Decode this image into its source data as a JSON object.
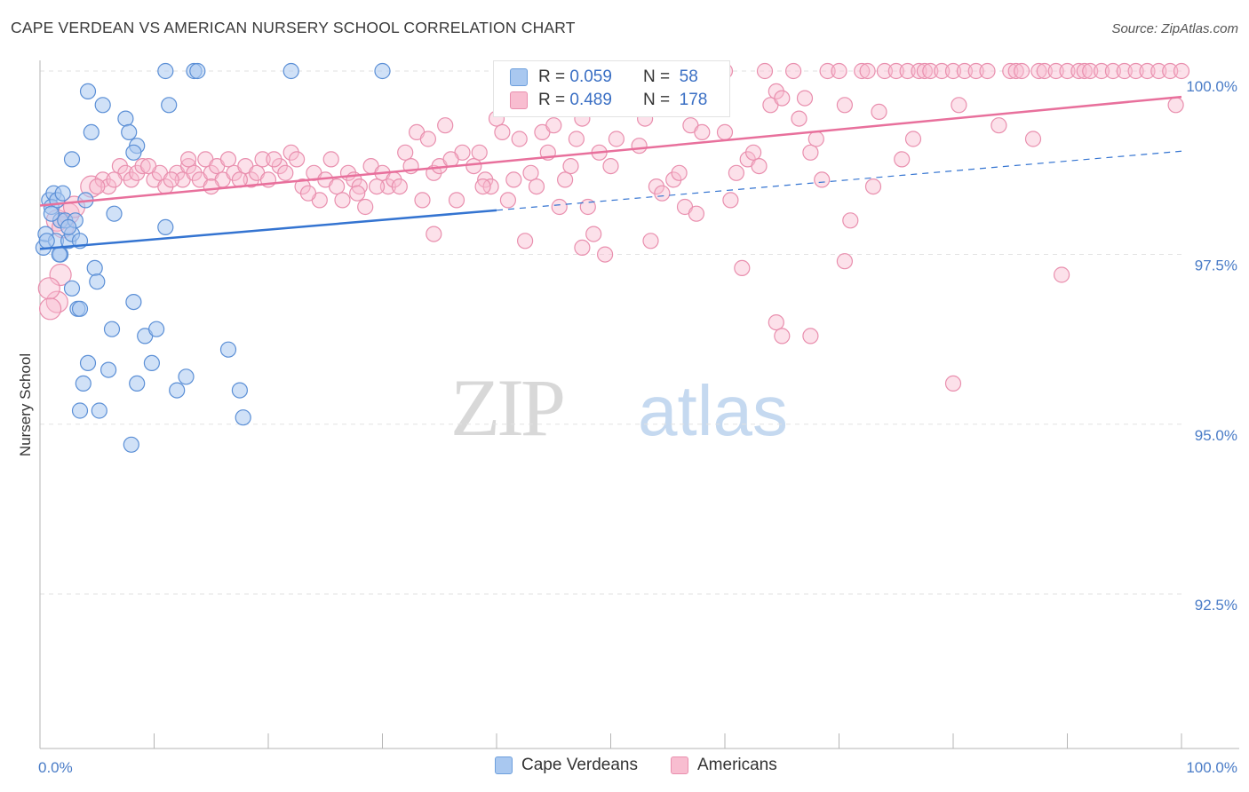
{
  "title": "CAPE VERDEAN VS AMERICAN NURSERY SCHOOL CORRELATION CHART",
  "source": "Source: ZipAtlas.com",
  "watermark": {
    "zip": "ZIP",
    "atlas": "atlas"
  },
  "legend": {
    "rows": [
      {
        "r_label": "R =",
        "r_value": "0.059",
        "n_label": "N =",
        "n_value": "58",
        "color": "#a9c8f0",
        "border": "#6d9fdc"
      },
      {
        "r_label": "R =",
        "r_value": "0.489",
        "n_label": "N =",
        "n_value": "178",
        "color": "#f8bdd0",
        "border": "#e98fae"
      }
    ]
  },
  "bottom_legend": [
    {
      "label": "Cape Verdeans",
      "color": "#a9c8f0",
      "border": "#6d9fdc"
    },
    {
      "label": "Americans",
      "color": "#f8bdd0",
      "border": "#e98fae"
    }
  ],
  "chart_data": {
    "type": "scatter",
    "xlabel": "",
    "ylabel": "Nursery School",
    "xlim": [
      0,
      100
    ],
    "ylim": [
      90.2,
      100.4
    ],
    "x_tick_labels": [
      "0.0%",
      "100.0%"
    ],
    "y_ticks": [
      92.5,
      95.0,
      97.5,
      100.0
    ],
    "y_tick_labels": [
      "92.5%",
      "95.0%",
      "97.5%",
      "100.0%"
    ],
    "grid": true,
    "series": [
      {
        "name": "Cape Verdeans",
        "color": "#a9c8f0",
        "stroke": "#5b8fd6",
        "line_color": "#3474d1",
        "trend": {
          "x": [
            0,
            40
          ],
          "y": [
            97.58,
            98.15
          ]
        },
        "trend_ext": {
          "x": [
            40,
            100
          ],
          "y": [
            98.15,
            99.02
          ]
        },
        "points": [
          [
            0.3,
            97.6
          ],
          [
            0.5,
            97.8
          ],
          [
            0.8,
            98.3
          ],
          [
            1.2,
            98.4
          ],
          [
            1.0,
            98.2
          ],
          [
            1.5,
            98.3
          ],
          [
            1.8,
            98.0
          ],
          [
            2.0,
            98.4
          ],
          [
            1.4,
            97.7
          ],
          [
            1.8,
            97.5
          ],
          [
            2.2,
            98.0
          ],
          [
            2.5,
            97.7
          ],
          [
            2.8,
            97.8
          ],
          [
            3.1,
            98.0
          ],
          [
            1.7,
            97.5
          ],
          [
            4.2,
            99.9
          ],
          [
            2.8,
            98.9
          ],
          [
            4.5,
            99.3
          ],
          [
            5.5,
            99.7
          ],
          [
            7.5,
            99.5
          ],
          [
            7.8,
            99.3
          ],
          [
            8.5,
            99.1
          ],
          [
            8.2,
            99.0
          ],
          [
            11.0,
            100.0
          ],
          [
            13.5,
            100.0
          ],
          [
            13.8,
            100.0
          ],
          [
            11.3,
            99.7
          ],
          [
            22.0,
            100.0
          ],
          [
            30.0,
            100.0
          ],
          [
            4.0,
            98.3
          ],
          [
            6.5,
            98.1
          ],
          [
            11.0,
            97.9
          ],
          [
            4.8,
            97.3
          ],
          [
            5.0,
            97.1
          ],
          [
            2.8,
            97.0
          ],
          [
            3.3,
            96.7
          ],
          [
            3.5,
            96.7
          ],
          [
            8.2,
            96.8
          ],
          [
            6.3,
            96.4
          ],
          [
            9.2,
            96.3
          ],
          [
            10.2,
            96.4
          ],
          [
            16.5,
            96.1
          ],
          [
            4.2,
            95.9
          ],
          [
            6.0,
            95.8
          ],
          [
            9.8,
            95.9
          ],
          [
            8.5,
            95.6
          ],
          [
            12.8,
            95.7
          ],
          [
            3.8,
            95.6
          ],
          [
            12.0,
            95.5
          ],
          [
            17.5,
            95.5
          ],
          [
            3.5,
            95.2
          ],
          [
            5.2,
            95.2
          ],
          [
            17.8,
            95.1
          ],
          [
            8.0,
            94.7
          ],
          [
            1.0,
            98.1
          ],
          [
            2.5,
            97.9
          ],
          [
            3.5,
            97.7
          ],
          [
            0.6,
            97.7
          ]
        ]
      },
      {
        "name": "Americans",
        "color": "#f8bdd0",
        "stroke": "#e98fae",
        "line_color": "#e8709c",
        "trend": {
          "x": [
            0,
            100
          ],
          "y": [
            98.22,
            99.82
          ]
        },
        "points": [
          [
            1.5,
            98.0
          ],
          [
            2.0,
            97.9
          ],
          [
            2.5,
            98.1
          ],
          [
            3.0,
            98.2
          ],
          [
            1.8,
            97.2
          ],
          [
            1.5,
            96.8
          ],
          [
            0.8,
            97.0
          ],
          [
            0.9,
            96.7
          ],
          [
            4.5,
            98.5
          ],
          [
            5.5,
            98.6
          ],
          [
            6.0,
            98.5
          ],
          [
            7.0,
            98.8
          ],
          [
            7.5,
            98.7
          ],
          [
            8.0,
            98.6
          ],
          [
            8.5,
            98.7
          ],
          [
            9.0,
            98.8
          ],
          [
            10.0,
            98.6
          ],
          [
            10.5,
            98.7
          ],
          [
            11.0,
            98.5
          ],
          [
            12.0,
            98.7
          ],
          [
            12.5,
            98.6
          ],
          [
            13.0,
            98.8
          ],
          [
            13.5,
            98.7
          ],
          [
            14.0,
            98.6
          ],
          [
            14.5,
            98.9
          ],
          [
            15.0,
            98.7
          ],
          [
            15.5,
            98.8
          ],
          [
            16.0,
            98.6
          ],
          [
            16.5,
            98.9
          ],
          [
            17.0,
            98.7
          ],
          [
            18.0,
            98.8
          ],
          [
            18.5,
            98.6
          ],
          [
            19.0,
            98.7
          ],
          [
            19.5,
            98.9
          ],
          [
            20.0,
            98.6
          ],
          [
            21.0,
            98.8
          ],
          [
            21.5,
            98.7
          ],
          [
            22.0,
            99.0
          ],
          [
            22.5,
            98.9
          ],
          [
            23.0,
            98.5
          ],
          [
            24.0,
            98.7
          ],
          [
            24.5,
            98.3
          ],
          [
            25.0,
            98.6
          ],
          [
            26.0,
            98.5
          ],
          [
            26.5,
            98.3
          ],
          [
            27.0,
            98.7
          ],
          [
            27.5,
            98.6
          ],
          [
            28.0,
            98.5
          ],
          [
            28.5,
            98.2
          ],
          [
            29.0,
            98.8
          ],
          [
            30.0,
            98.7
          ],
          [
            30.5,
            98.5
          ],
          [
            31.0,
            98.6
          ],
          [
            32.0,
            99.0
          ],
          [
            32.5,
            98.8
          ],
          [
            33.0,
            99.3
          ],
          [
            34.0,
            99.2
          ],
          [
            34.5,
            98.7
          ],
          [
            35.0,
            98.8
          ],
          [
            35.5,
            99.4
          ],
          [
            36.5,
            98.3
          ],
          [
            37.0,
            99.0
          ],
          [
            38.0,
            98.8
          ],
          [
            38.5,
            99.0
          ],
          [
            39.0,
            98.6
          ],
          [
            39.5,
            98.5
          ],
          [
            40.0,
            99.5
          ],
          [
            40.5,
            99.3
          ],
          [
            41.0,
            98.3
          ],
          [
            41.5,
            98.6
          ],
          [
            42.0,
            99.2
          ],
          [
            43.0,
            98.7
          ],
          [
            44.0,
            99.3
          ],
          [
            45.0,
            99.4
          ],
          [
            45.5,
            98.2
          ],
          [
            46.0,
            98.6
          ],
          [
            47.0,
            99.2
          ],
          [
            47.5,
            99.5
          ],
          [
            48.0,
            98.2
          ],
          [
            49.0,
            99.0
          ],
          [
            50.0,
            98.8
          ],
          [
            51.0,
            99.7
          ],
          [
            52.0,
            100.0
          ],
          [
            53.0,
            99.5
          ],
          [
            54.0,
            98.5
          ],
          [
            54.5,
            98.4
          ],
          [
            55.0,
            99.8
          ],
          [
            55.5,
            98.6
          ],
          [
            56.5,
            98.2
          ],
          [
            57.0,
            99.4
          ],
          [
            59.0,
            99.9
          ],
          [
            60.0,
            100.0
          ],
          [
            61.0,
            98.7
          ],
          [
            62.0,
            98.9
          ],
          [
            62.5,
            99.0
          ],
          [
            63.5,
            100.0
          ],
          [
            64.0,
            99.7
          ],
          [
            64.5,
            99.9
          ],
          [
            65.0,
            99.8
          ],
          [
            66.0,
            100.0
          ],
          [
            67.0,
            99.8
          ],
          [
            67.5,
            99.0
          ],
          [
            68.0,
            99.2
          ],
          [
            69.0,
            100.0
          ],
          [
            70.0,
            100.0
          ],
          [
            70.5,
            99.7
          ],
          [
            71.0,
            98.0
          ],
          [
            72.0,
            100.0
          ],
          [
            72.5,
            100.0
          ],
          [
            73.0,
            98.5
          ],
          [
            74.0,
            100.0
          ],
          [
            75.0,
            100.0
          ],
          [
            75.5,
            98.9
          ],
          [
            76.0,
            100.0
          ],
          [
            77.0,
            100.0
          ],
          [
            77.5,
            100.0
          ],
          [
            78.0,
            100.0
          ],
          [
            79.0,
            100.0
          ],
          [
            80.0,
            100.0
          ],
          [
            80.5,
            99.7
          ],
          [
            81.0,
            100.0
          ],
          [
            82.0,
            100.0
          ],
          [
            83.0,
            100.0
          ],
          [
            84.0,
            99.4
          ],
          [
            85.0,
            100.0
          ],
          [
            85.5,
            100.0
          ],
          [
            86.0,
            100.0
          ],
          [
            87.0,
            99.2
          ],
          [
            87.5,
            100.0
          ],
          [
            88.0,
            100.0
          ],
          [
            89.0,
            100.0
          ],
          [
            90.0,
            100.0
          ],
          [
            91.0,
            100.0
          ],
          [
            91.5,
            100.0
          ],
          [
            92.0,
            100.0
          ],
          [
            93.0,
            100.0
          ],
          [
            94.0,
            100.0
          ],
          [
            95.0,
            100.0
          ],
          [
            96.0,
            100.0
          ],
          [
            97.0,
            100.0
          ],
          [
            98.0,
            100.0
          ],
          [
            99.0,
            100.0
          ],
          [
            99.5,
            99.7
          ],
          [
            100.0,
            100.0
          ],
          [
            34.5,
            97.8
          ],
          [
            42.5,
            97.7
          ],
          [
            47.5,
            97.6
          ],
          [
            48.5,
            97.8
          ],
          [
            49.5,
            97.5
          ],
          [
            53.5,
            97.7
          ],
          [
            57.5,
            98.1
          ],
          [
            60.5,
            98.3
          ],
          [
            70.5,
            97.4
          ],
          [
            61.5,
            97.3
          ],
          [
            64.5,
            96.5
          ],
          [
            65.0,
            96.3
          ],
          [
            67.5,
            96.3
          ],
          [
            89.5,
            97.2
          ],
          [
            80.0,
            95.6
          ],
          [
            5.0,
            98.5
          ],
          [
            6.5,
            98.6
          ],
          [
            9.5,
            98.8
          ],
          [
            11.5,
            98.6
          ],
          [
            13.0,
            98.9
          ],
          [
            15.0,
            98.5
          ],
          [
            17.5,
            98.6
          ],
          [
            20.5,
            98.9
          ],
          [
            23.5,
            98.4
          ],
          [
            25.5,
            98.9
          ],
          [
            27.8,
            98.4
          ],
          [
            29.5,
            98.5
          ],
          [
            31.5,
            98.5
          ],
          [
            33.5,
            98.3
          ],
          [
            36.0,
            98.9
          ],
          [
            38.8,
            98.5
          ],
          [
            43.5,
            98.5
          ],
          [
            44.5,
            99.0
          ],
          [
            46.5,
            98.8
          ],
          [
            50.5,
            99.2
          ],
          [
            52.5,
            99.1
          ],
          [
            56.0,
            98.7
          ],
          [
            58.0,
            99.3
          ],
          [
            60.0,
            99.3
          ],
          [
            63.0,
            98.8
          ],
          [
            66.5,
            99.5
          ],
          [
            68.5,
            98.6
          ],
          [
            73.5,
            99.6
          ],
          [
            76.5,
            99.2
          ]
        ]
      }
    ]
  }
}
